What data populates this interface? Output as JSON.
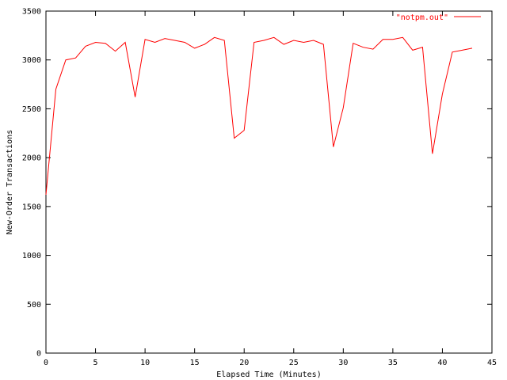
{
  "chart_data": {
    "type": "line",
    "title": "",
    "xlabel": "Elapsed Time (Minutes)",
    "ylabel": "New-Order Transactions",
    "xlim": [
      0,
      45
    ],
    "ylim": [
      0,
      3500
    ],
    "xticks": [
      0,
      5,
      10,
      15,
      20,
      25,
      30,
      35,
      40,
      45
    ],
    "yticks": [
      0,
      500,
      1000,
      1500,
      2000,
      2500,
      3000,
      3500
    ],
    "grid": false,
    "legend_position": "top-right",
    "series": [
      {
        "name": "\"notpm.out\"",
        "color": "#ff0000",
        "x": [
          0,
          1,
          2,
          3,
          4,
          5,
          6,
          7,
          8,
          9,
          10,
          11,
          12,
          13,
          14,
          15,
          16,
          17,
          18,
          19,
          20,
          21,
          22,
          23,
          24,
          25,
          26,
          27,
          28,
          29,
          30,
          31,
          32,
          33,
          34,
          35,
          36,
          37,
          38,
          39,
          40,
          41,
          42,
          43
        ],
        "y": [
          1620,
          2700,
          3000,
          3020,
          3140,
          3180,
          3170,
          3090,
          3180,
          2620,
          3210,
          3180,
          3220,
          3200,
          3180,
          3120,
          3160,
          3230,
          3200,
          2200,
          2280,
          3180,
          3200,
          3230,
          3160,
          3200,
          3180,
          3200,
          3160,
          2110,
          2510,
          3170,
          3130,
          3110,
          3210,
          3210,
          3230,
          3100,
          3130,
          2040,
          2650,
          3080,
          3100,
          3120
        ]
      }
    ]
  }
}
